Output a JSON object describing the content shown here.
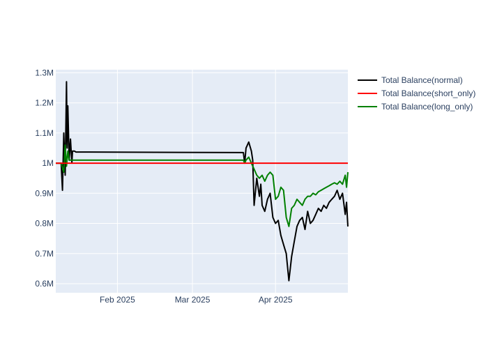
{
  "chart_data": {
    "type": "line",
    "x_axis": {
      "kind": "date",
      "range": [
        "2025-01-09",
        "2025-04-28"
      ],
      "tick_labels": [
        "Feb 2025",
        "Mar 2025",
        "Apr 2025"
      ],
      "tick_values": [
        "2025-02-01",
        "2025-03-01",
        "2025-04-01"
      ]
    },
    "y_axis": {
      "range": [
        570000,
        1310000
      ],
      "tick_values": [
        600000,
        700000,
        800000,
        900000,
        1000000,
        1100000,
        1200000,
        1300000
      ],
      "tick_labels": [
        "0.6M",
        "0.7M",
        "0.8M",
        "0.9M",
        "1M",
        "1.1M",
        "1.2M",
        "1.3M"
      ]
    },
    "grid": true,
    "background": "#e5ecf6",
    "legend_position": "top-right",
    "series": [
      {
        "name": "Total Balance(normal)",
        "color": "#000000",
        "x": [
          "2025-01-09",
          "2025-01-11",
          "2025-01-11T12:00",
          "2025-01-12",
          "2025-01-12T12:00",
          "2025-01-13",
          "2025-01-13T06:00",
          "2025-01-13T12:00",
          "2025-01-14",
          "2025-01-14T12:00",
          "2025-01-15",
          "2025-01-15T06:00",
          "2025-01-16",
          "2025-01-16T12:00",
          "2025-03-20",
          "2025-03-20T12:00",
          "2025-03-21",
          "2025-03-22",
          "2025-03-23",
          "2025-03-23T12:00",
          "2025-03-24",
          "2025-03-25",
          "2025-03-26",
          "2025-03-26T12:00",
          "2025-03-27",
          "2025-03-28",
          "2025-03-29",
          "2025-03-30",
          "2025-03-31",
          "2025-04-01",
          "2025-04-02",
          "2025-04-03",
          "2025-04-04",
          "2025-04-05",
          "2025-04-06",
          "2025-04-07",
          "2025-04-08",
          "2025-04-09",
          "2025-04-10",
          "2025-04-11",
          "2025-04-12",
          "2025-04-13",
          "2025-04-14",
          "2025-04-15",
          "2025-04-16",
          "2025-04-17",
          "2025-04-18",
          "2025-04-19",
          "2025-04-20",
          "2025-04-21",
          "2025-04-22",
          "2025-04-23",
          "2025-04-24",
          "2025-04-25",
          "2025-04-26",
          "2025-04-27",
          "2025-04-27T12:00",
          "2025-04-28"
        ],
        "y": [
          1000000,
          1000000,
          910000,
          1100000,
          960000,
          1270000,
          1050000,
          1190000,
          1010000,
          1080000,
          1000000,
          1040000,
          1040000,
          1037000,
          1035000,
          1000000,
          1050000,
          1070000,
          1040000,
          1010000,
          860000,
          950000,
          890000,
          930000,
          860000,
          840000,
          880000,
          900000,
          820000,
          800000,
          810000,
          760000,
          730000,
          700000,
          610000,
          690000,
          740000,
          790000,
          810000,
          820000,
          780000,
          840000,
          800000,
          810000,
          830000,
          850000,
          840000,
          860000,
          850000,
          870000,
          880000,
          890000,
          910000,
          880000,
          900000,
          830000,
          870000,
          790000
        ]
      },
      {
        "name": "Total Balance(short_only)",
        "color": "#ff0000",
        "x": [
          "2025-01-09",
          "2025-04-28"
        ],
        "y": [
          1000000,
          1000000
        ]
      },
      {
        "name": "Total Balance(long_only)",
        "color": "#008000",
        "x": [
          "2025-01-09",
          "2025-01-11",
          "2025-01-12",
          "2025-01-12T12:00",
          "2025-01-13",
          "2025-01-13T12:00",
          "2025-01-14",
          "2025-01-15",
          "2025-01-16",
          "2025-03-20",
          "2025-03-20T12:00",
          "2025-03-21",
          "2025-03-22",
          "2025-03-23",
          "2025-03-24",
          "2025-03-25",
          "2025-03-26",
          "2025-03-27",
          "2025-03-28",
          "2025-03-29",
          "2025-03-30",
          "2025-03-31",
          "2025-04-01",
          "2025-04-02",
          "2025-04-03",
          "2025-04-04",
          "2025-04-05",
          "2025-04-06",
          "2025-04-07",
          "2025-04-08",
          "2025-04-09",
          "2025-04-10",
          "2025-04-11",
          "2025-04-12",
          "2025-04-13",
          "2025-04-14",
          "2025-04-15",
          "2025-04-16",
          "2025-04-17",
          "2025-04-18",
          "2025-04-19",
          "2025-04-20",
          "2025-04-21",
          "2025-04-22",
          "2025-04-23",
          "2025-04-24",
          "2025-04-25",
          "2025-04-26",
          "2025-04-27",
          "2025-04-27T12:00",
          "2025-04-28"
        ],
        "y": [
          1000000,
          1000000,
          970000,
          1060000,
          990000,
          1040000,
          1010000,
          1010000,
          1010000,
          1010000,
          1000000,
          1010000,
          1020000,
          1000000,
          980000,
          960000,
          950000,
          960000,
          940000,
          960000,
          970000,
          960000,
          880000,
          890000,
          920000,
          910000,
          820000,
          790000,
          850000,
          860000,
          880000,
          870000,
          860000,
          880000,
          890000,
          890000,
          900000,
          895000,
          905000,
          910000,
          915000,
          920000,
          925000,
          930000,
          935000,
          930000,
          940000,
          930000,
          960000,
          920000,
          970000
        ]
      }
    ]
  }
}
